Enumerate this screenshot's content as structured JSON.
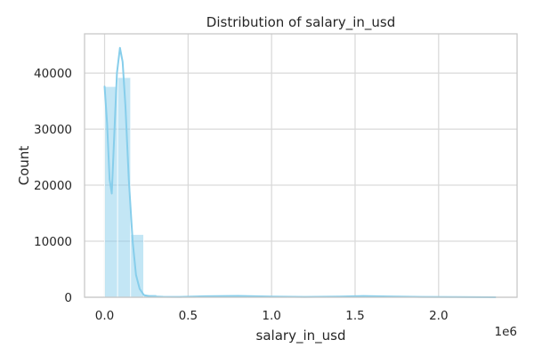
{
  "chart_data": {
    "type": "histogram",
    "title": "Distribution of salary_in_usd",
    "xlabel": "salary_in_usd",
    "ylabel": "Count",
    "x_offset_label": "1e6",
    "xlim": [
      -120000,
      2470000
    ],
    "ylim": [
      0,
      47000
    ],
    "x_ticks": [
      {
        "value": 0,
        "label": "0.0"
      },
      {
        "value": 500000,
        "label": "0.5"
      },
      {
        "value": 1000000,
        "label": "1.0"
      },
      {
        "value": 1500000,
        "label": "1.5"
      },
      {
        "value": 2000000,
        "label": "2.0"
      }
    ],
    "y_ticks": [
      {
        "value": 0,
        "label": "0"
      },
      {
        "value": 10000,
        "label": "10000"
      },
      {
        "value": 20000,
        "label": "20000"
      },
      {
        "value": 30000,
        "label": "30000"
      },
      {
        "value": 40000,
        "label": "40000"
      }
    ],
    "bins": [
      {
        "x0": 0,
        "x1": 78000,
        "count": 37600
      },
      {
        "x0": 78000,
        "x1": 156000,
        "count": 39200
      },
      {
        "x0": 156000,
        "x1": 234000,
        "count": 11200
      },
      {
        "x0": 234000,
        "x1": 312000,
        "count": 500
      },
      {
        "x0": 312000,
        "x1": 390000,
        "count": 150
      },
      {
        "x0": 390000,
        "x1": 468000,
        "count": 60
      },
      {
        "x0": 468000,
        "x1": 546000,
        "count": 40
      },
      {
        "x0": 546000,
        "x1": 624000,
        "count": 20
      },
      {
        "x0": 624000,
        "x1": 702000,
        "count": 20
      },
      {
        "x0": 702000,
        "x1": 780000,
        "count": 10
      },
      {
        "x0": 780000,
        "x1": 858000,
        "count": 10
      },
      {
        "x0": 858000,
        "x1": 936000,
        "count": 10
      },
      {
        "x0": 936000,
        "x1": 1014000,
        "count": 10
      },
      {
        "x0": 1014000,
        "x1": 1092000,
        "count": 10
      },
      {
        "x0": 1092000,
        "x1": 1170000,
        "count": 10
      },
      {
        "x0": 1170000,
        "x1": 1248000,
        "count": 10
      },
      {
        "x0": 1248000,
        "x1": 1326000,
        "count": 10
      },
      {
        "x0": 1326000,
        "x1": 1404000,
        "count": 10
      },
      {
        "x0": 1404000,
        "x1": 1482000,
        "count": 10
      },
      {
        "x0": 1482000,
        "x1": 1560000,
        "count": 10
      },
      {
        "x0": 1560000,
        "x1": 1638000,
        "count": 10
      },
      {
        "x0": 1638000,
        "x1": 1716000,
        "count": 10
      },
      {
        "x0": 1716000,
        "x1": 1794000,
        "count": 10
      },
      {
        "x0": 1794000,
        "x1": 1872000,
        "count": 10
      },
      {
        "x0": 1872000,
        "x1": 1950000,
        "count": 10
      },
      {
        "x0": 1950000,
        "x1": 2028000,
        "count": 10
      },
      {
        "x0": 2028000,
        "x1": 2106000,
        "count": 10
      },
      {
        "x0": 2106000,
        "x1": 2184000,
        "count": 10
      },
      {
        "x0": 2184000,
        "x1": 2262000,
        "count": 10
      },
      {
        "x0": 2262000,
        "x1": 2340000,
        "count": 10
      }
    ],
    "kde": [
      {
        "x": 0,
        "y": 37600
      },
      {
        "x": 15000,
        "y": 31000
      },
      {
        "x": 30000,
        "y": 21000
      },
      {
        "x": 43000,
        "y": 18500
      },
      {
        "x": 58000,
        "y": 29000
      },
      {
        "x": 74000,
        "y": 40000
      },
      {
        "x": 92000,
        "y": 44500
      },
      {
        "x": 108000,
        "y": 42000
      },
      {
        "x": 125000,
        "y": 34000
      },
      {
        "x": 145000,
        "y": 21000
      },
      {
        "x": 168000,
        "y": 10000
      },
      {
        "x": 188000,
        "y": 4000
      },
      {
        "x": 210000,
        "y": 1500
      },
      {
        "x": 235000,
        "y": 400
      },
      {
        "x": 270000,
        "y": 150
      },
      {
        "x": 350000,
        "y": 80
      },
      {
        "x": 450000,
        "y": 60
      },
      {
        "x": 600000,
        "y": 180
      },
      {
        "x": 800000,
        "y": 240
      },
      {
        "x": 1000000,
        "y": 120
      },
      {
        "x": 1200000,
        "y": 60
      },
      {
        "x": 1400000,
        "y": 120
      },
      {
        "x": 1550000,
        "y": 220
      },
      {
        "x": 1700000,
        "y": 140
      },
      {
        "x": 1900000,
        "y": 60
      },
      {
        "x": 2100000,
        "y": 30
      },
      {
        "x": 2340000,
        "y": 10
      }
    ],
    "bar_color": "#87ceeb",
    "bar_opacity": 0.5,
    "line_color": "#87ceeb",
    "grid": true,
    "legend": "none"
  }
}
